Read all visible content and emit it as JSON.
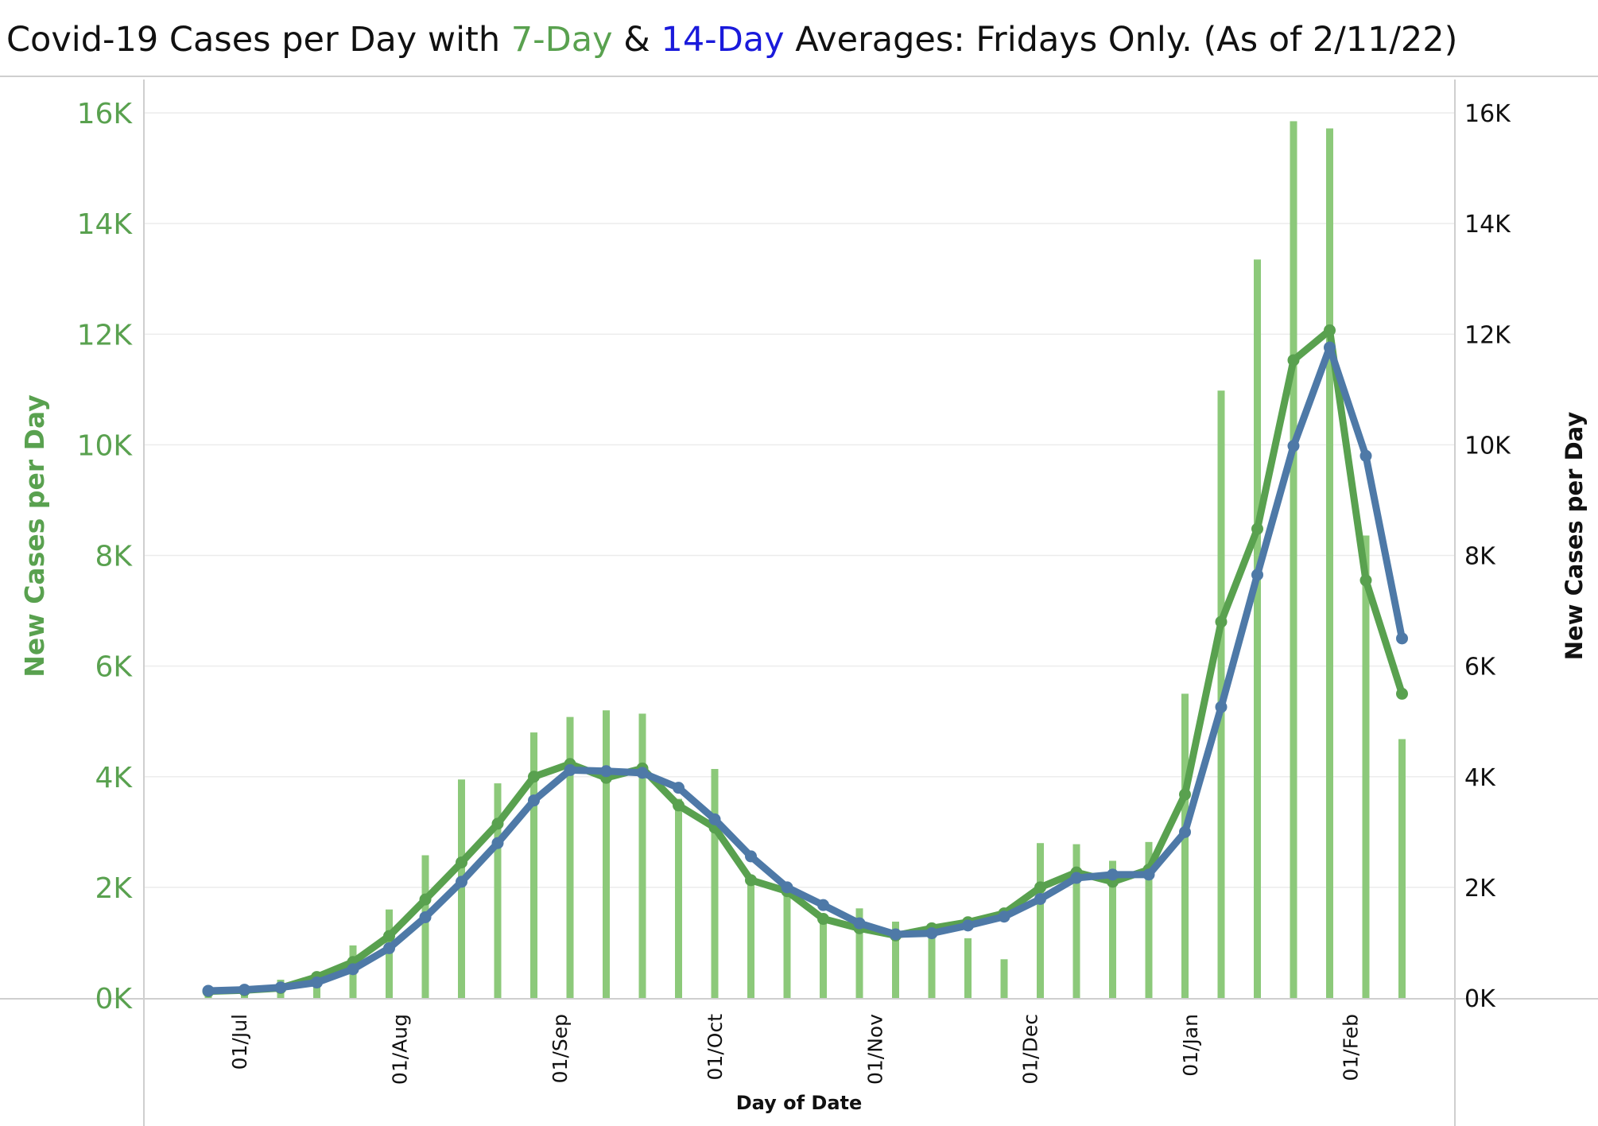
{
  "title": {
    "prefix": "Covid-19 Cases per Day with ",
    "seven_day": "7-Day",
    "amp": " & ",
    "fourteen_day": "14-Day",
    "suffix": " Averages: Fridays Only. (As of 2/11/22)"
  },
  "chart_data": {
    "type": "bar",
    "title": "Covid-19 Cases per Day with 7-Day & 14-Day Averages: Fridays Only. (As of 2/11/22)",
    "xlabel": "Day of Date",
    "ylabel_left": "New Cases per Day",
    "ylabel_right": "New Cases per Day",
    "ylim": [
      0,
      16000
    ],
    "y_ticks": [
      "0K",
      "2K",
      "4K",
      "6K",
      "8K",
      "10K",
      "12K",
      "14K",
      "16K"
    ],
    "x_ticks": [
      "01/Jul",
      "01/Aug",
      "01/Sep",
      "01/Oct",
      "01/Nov",
      "01/Dec",
      "01/Jan",
      "01/Feb"
    ],
    "x_dates": [
      "2021-06-25",
      "2021-07-02",
      "2021-07-09",
      "2021-07-16",
      "2021-07-23",
      "2021-07-30",
      "2021-08-06",
      "2021-08-13",
      "2021-08-20",
      "2021-08-27",
      "2021-09-03",
      "2021-09-10",
      "2021-09-17",
      "2021-09-24",
      "2021-10-01",
      "2021-10-08",
      "2021-10-15",
      "2021-10-22",
      "2021-10-29",
      "2021-11-05",
      "2021-11-12",
      "2021-11-19",
      "2021-11-26",
      "2021-12-03",
      "2021-12-10",
      "2021-12-17",
      "2021-12-24",
      "2021-12-31",
      "2022-01-07",
      "2022-01-14",
      "2022-01-21",
      "2022-01-28",
      "2022-02-04",
      "2022-02-11"
    ],
    "series": [
      {
        "type": "bar",
        "color": "#8cc97a",
        "values": [
          130,
          150,
          330,
          450,
          950,
          1600,
          2580,
          3950,
          3880,
          4800,
          5080,
          5200,
          5140,
          3600,
          4140,
          2200,
          2050,
          1450,
          1620,
          1380,
          1250,
          1080,
          700,
          2800,
          2780,
          2480,
          2820,
          5500,
          10980,
          13350,
          15850,
          15720,
          8360,
          4680
        ]
      },
      {
        "type": "line",
        "color": "#59a14f",
        "values": [
          120,
          140,
          180,
          380,
          650,
          1120,
          1780,
          2450,
          3150,
          4000,
          4230,
          3980,
          4150,
          3480,
          3080,
          2130,
          1930,
          1430,
          1260,
          1130,
          1260,
          1370,
          1530,
          2000,
          2270,
          2100,
          2320,
          3680,
          6800,
          8480,
          11530,
          12070,
          7550,
          5500
        ]
      },
      {
        "type": "line",
        "color": "#4e79a7",
        "values": [
          130,
          150,
          190,
          280,
          520,
          900,
          1460,
          2100,
          2800,
          3570,
          4120,
          4100,
          4070,
          3800,
          3230,
          2560,
          2000,
          1680,
          1350,
          1150,
          1170,
          1310,
          1470,
          1790,
          2170,
          2230,
          2230,
          3000,
          5260,
          7650,
          9980,
          11760,
          9800,
          6500
        ]
      }
    ]
  }
}
